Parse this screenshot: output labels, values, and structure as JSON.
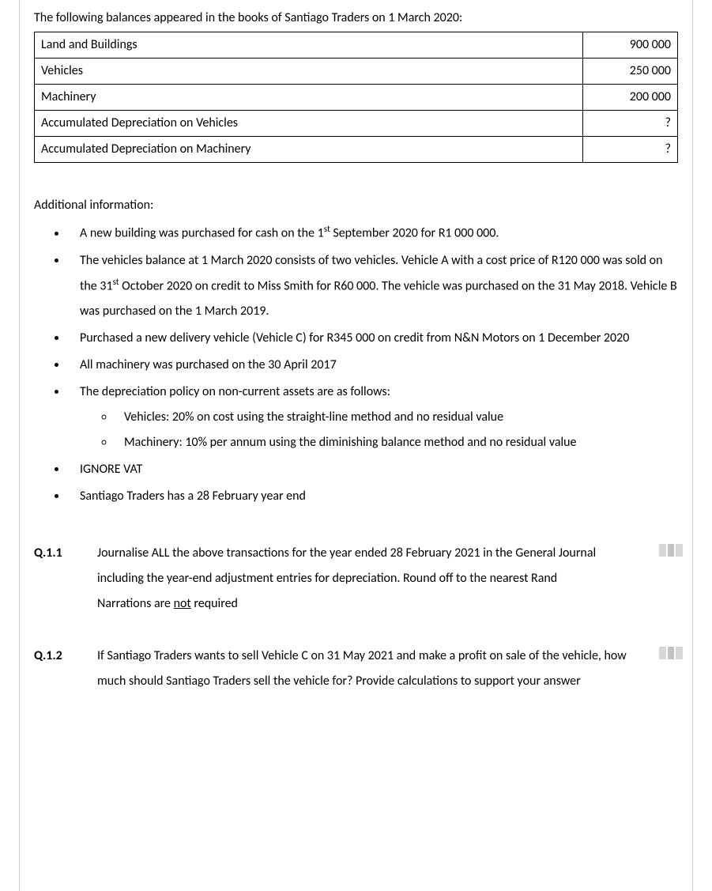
{
  "intro": "The following balances appeared in the books of Santiago Traders on 1 March 2020:",
  "balances": {
    "rows": [
      {
        "label": "Land and Buildings",
        "value": "900 000"
      },
      {
        "label": "Vehicles",
        "value": "250 000"
      },
      {
        "label": "Machinery",
        "value": "200 000"
      },
      {
        "label": "Accumulated Depreciation on Vehicles",
        "value": "?"
      },
      {
        "label": "Accumulated Depreciation on Machinery",
        "value": "?"
      }
    ]
  },
  "additional_heading": "Additional information:",
  "bullets": {
    "b0_pre": "A new building was purchased for cash on the 1",
    "b0_sup": "st",
    "b0_post": " September 2020 for R1 000 000.",
    "b1_pre": "The vehicles balance at 1 March 2020 consists of two vehicles. Vehicle A with a cost price of R120 000 was sold on the 31",
    "b1_sup": "st",
    "b1_post": " October 2020 on credit to Miss Smith for R60 000. The vehicle was purchased on the 31 May 2018. Vehicle B was purchased on the 1 March 2019.",
    "b2": "Purchased a new delivery vehicle (Vehicle C) for R345 000 on credit from N&N Motors on 1 December 2020",
    "b3": "All machinery was purchased on the 30 April 2017",
    "b4": "The depreciation policy on non-current assets are as follows:",
    "b4_sub1": "Vehicles: 20% on cost using the straight-line method and no residual value",
    "b4_sub2": "Machinery: 10% per annum using the diminishing balance method and no residual value",
    "b5": "IGNORE VAT",
    "b6": "Santiago Traders has a 28 February year end"
  },
  "q11": {
    "label": "Q.1.1",
    "line1": "Journalise ALL the above transactions for the year ended 28 February 2021 in the General Journal including the year-end adjustment entries for depreciation. Round off to the nearest Rand",
    "line2_pre": "Narrations are ",
    "line2_u": "not",
    "line2_post": " required"
  },
  "q12": {
    "label": "Q.1.2",
    "text": "If Santiago Traders wants to sell Vehicle C on 31 May 2021 and make a profit on sale of the vehicle, how much should Santiago Traders sell the vehicle for? Provide calculations to support your answer"
  }
}
